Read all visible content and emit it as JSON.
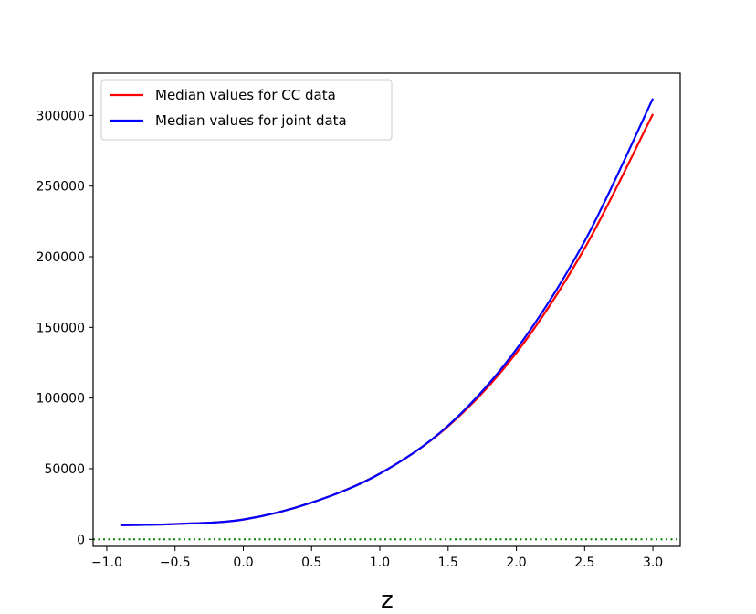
{
  "chart_data": {
    "type": "line",
    "title": "",
    "xlabel": "z",
    "ylabel": "",
    "xlim": [
      -1.1,
      3.2
    ],
    "ylim": [
      -5000,
      330000
    ],
    "xticks": [
      -1.0,
      -0.5,
      0.0,
      0.5,
      1.0,
      1.5,
      2.0,
      2.5,
      3.0
    ],
    "xtick_labels": [
      "−1.0",
      "−0.5",
      "0.0",
      "0.5",
      "1.0",
      "1.5",
      "2.0",
      "2.5",
      "3.0"
    ],
    "yticks": [
      0,
      50000,
      100000,
      150000,
      200000,
      250000,
      300000
    ],
    "ytick_labels": [
      "0",
      "50000",
      "100000",
      "150000",
      "200000",
      "250000",
      "300000"
    ],
    "grid": false,
    "legend_position": "top-left",
    "reference_line": {
      "y": 0,
      "color": "#008000",
      "style": "dotted"
    },
    "series": [
      {
        "name": "Median values for CC data",
        "color": "#ff0000",
        "x": [
          -0.9,
          -0.5,
          0.0,
          0.5,
          1.0,
          1.5,
          2.0,
          2.5,
          3.0
        ],
        "y": [
          10000,
          10800,
          14000,
          26000,
          46500,
          80000,
          132000,
          206000,
          301000
        ]
      },
      {
        "name": "Median values for joint data",
        "color": "#0000ff",
        "x": [
          -0.9,
          -0.5,
          0.0,
          0.5,
          1.0,
          1.5,
          2.0,
          2.5,
          3.0
        ],
        "y": [
          10000,
          10800,
          14000,
          26000,
          46500,
          80500,
          134500,
          211000,
          312000
        ]
      }
    ]
  }
}
